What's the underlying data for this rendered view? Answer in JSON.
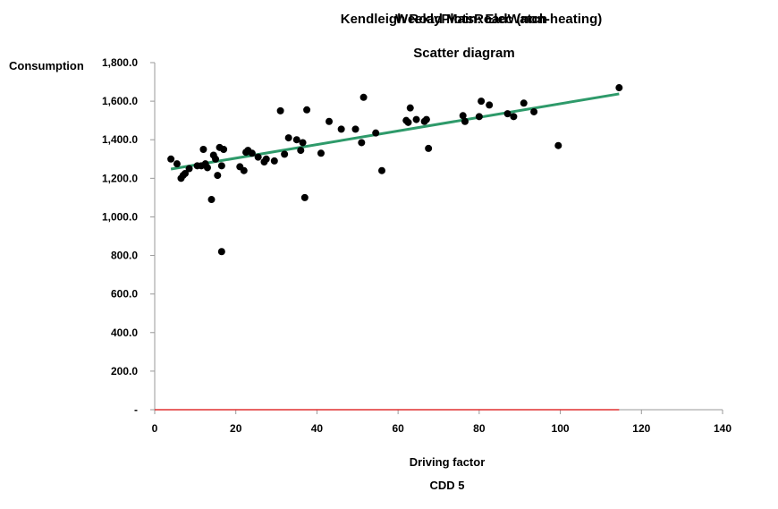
{
  "chart_data": {
    "type": "scatter",
    "title_overlay": "WeeklyPlotsRoadWatch",
    "title": "Kendleigh Road Main: Elec (non-heating)",
    "subtitle": "Scatter diagram",
    "ylabel": "Consumption",
    "xlabel": "Driving factor",
    "xlabel2": "CDD 5",
    "xlim": [
      0,
      140
    ],
    "ylim": [
      0,
      1800
    ],
    "xticks": [
      0,
      20,
      40,
      60,
      80,
      100,
      120,
      140
    ],
    "yticks": [
      0,
      200,
      400,
      600,
      800,
      1000,
      1200,
      1400,
      1600,
      1800
    ],
    "ytick_labels": [
      "-",
      "200.0",
      "400.0",
      "600.0",
      "800.0",
      "1,000.0",
      "1,200.0",
      "1,400.0",
      "1,600.0",
      "1,800.0"
    ],
    "xtick_labels": [
      "0",
      "20",
      "40",
      "60",
      "80",
      "100",
      "120",
      "140"
    ],
    "grid": false,
    "colors": {
      "points": "#000000",
      "trend": "#2e9a6a",
      "baseline": "#e03030",
      "axis": "#999999"
    },
    "series": [
      {
        "x": [
          4,
          5.5,
          6.5,
          7,
          7.5,
          8.5,
          10.5,
          11.5,
          12,
          12.5,
          13,
          14,
          14.5,
          15,
          15.5,
          16,
          16.5,
          17,
          21,
          22,
          22.5,
          23,
          24,
          25.5,
          27,
          27.5,
          29.5,
          31,
          32,
          33,
          35,
          36,
          36.5,
          37,
          37.5,
          41,
          43,
          46,
          49.5,
          51,
          51.5,
          54.5,
          56,
          62,
          62.5,
          63,
          64.5,
          66.5,
          67,
          67.5,
          76,
          76.5,
          80,
          80.5,
          82.5,
          87,
          88.5,
          91,
          93.5,
          99.5,
          114.5
        ],
        "y": [
          1300,
          1275,
          1200,
          1215,
          1225,
          1250,
          1265,
          1265,
          1350,
          1275,
          1255,
          1090,
          1320,
          1300,
          1215,
          1360,
          1265,
          1350,
          1260,
          1240,
          1335,
          1345,
          1330,
          1310,
          1285,
          1300,
          1290,
          1550,
          1325,
          1410,
          1400,
          1345,
          1385,
          1100,
          1555,
          1330,
          1495,
          1455,
          1455,
          1385,
          1620,
          1435,
          1240,
          1500,
          1490,
          1565,
          1505,
          1495,
          1505,
          1355,
          1525,
          1495,
          1520,
          1600,
          1580,
          1535,
          1520,
          1590,
          1545,
          1370,
          1670
        ]
      }
    ],
    "outliers": {
      "x": [
        16.5
      ],
      "y": [
        820
      ]
    },
    "trendline": {
      "x": [
        4,
        114.5
      ],
      "y": [
        1248,
        1638
      ]
    },
    "baseline": {
      "x": [
        0,
        114.5
      ],
      "y": [
        0,
        0
      ]
    }
  }
}
